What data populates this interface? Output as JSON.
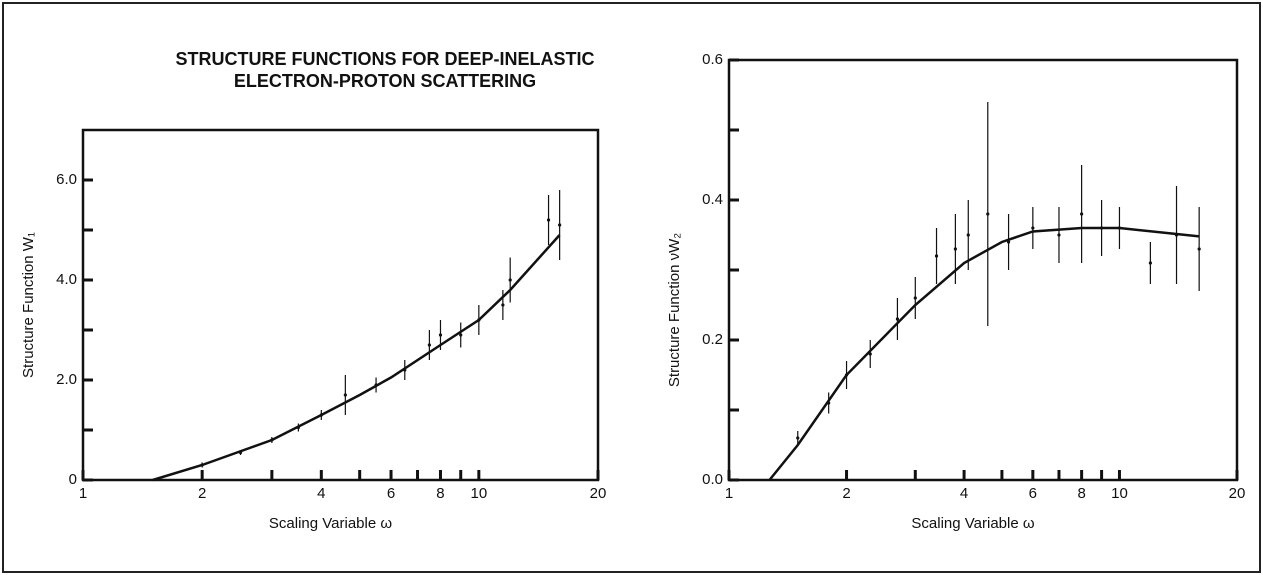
{
  "chart_data": [
    {
      "type": "scatter",
      "title": "STRUCTURE FUNCTIONS FOR DEEP-INELASTIC ELECTRON-PROTON SCATTERING",
      "x_label": "Scaling Variable ω",
      "y_label": "Structure Function W₁",
      "log_x": true,
      "xlim": [
        1,
        20
      ],
      "xticks": [
        1,
        2,
        4,
        6,
        8,
        10,
        20
      ],
      "xminorticks": [
        3,
        5,
        7,
        9
      ],
      "ylim": [
        0,
        7
      ],
      "yticks": [
        0,
        {
          "value": 2,
          "label": "2.0"
        },
        {
          "value": 4,
          "label": "4.0"
        },
        {
          "value": 6,
          "label": "6.0"
        }
      ],
      "yminorticks": [
        1,
        3,
        5
      ],
      "color": "#111111",
      "fit": {
        "x": [
          1.5,
          2,
          3,
          4,
          5,
          6,
          8,
          10,
          12,
          16
        ],
        "values": [
          0,
          0.3,
          0.8,
          1.3,
          1.7,
          2.05,
          2.7,
          3.2,
          3.8,
          4.9
        ]
      },
      "points": {
        "x": [
          2,
          2.5,
          3,
          3.5,
          4,
          4.6,
          5.5,
          6.5,
          7.5,
          8,
          9,
          10,
          11.5,
          12,
          15,
          16
        ],
        "values": [
          0.3,
          0.55,
          0.8,
          1.05,
          1.3,
          1.7,
          1.9,
          2.2,
          2.7,
          2.9,
          2.9,
          3.2,
          3.5,
          4.0,
          5.2,
          5.1
        ],
        "errors": [
          0.05,
          0.05,
          0.06,
          0.08,
          0.1,
          0.4,
          0.15,
          0.2,
          0.3,
          0.3,
          0.25,
          0.3,
          0.3,
          0.45,
          0.5,
          0.7
        ]
      }
    },
    {
      "type": "scatter",
      "x_label": "Scaling Variable ω",
      "y_label": "Structure Function νW₂",
      "log_x": true,
      "xlim": [
        1,
        20
      ],
      "xticks": [
        1,
        2,
        4,
        6,
        8,
        10,
        20
      ],
      "xminorticks": [
        3,
        5,
        7,
        9
      ],
      "ylim": [
        0,
        0.6
      ],
      "yticks": [
        {
          "value": 0,
          "label": "0.0"
        },
        0.2,
        0.4,
        0.6
      ],
      "yminorticks": [
        0.1,
        0.3,
        0.5
      ],
      "color": "#111111",
      "fit": {
        "x": [
          1.27,
          1.5,
          2,
          3,
          4,
          5,
          6,
          8,
          10,
          16
        ],
        "values": [
          0,
          0.05,
          0.15,
          0.25,
          0.31,
          0.34,
          0.355,
          0.36,
          0.36,
          0.348
        ]
      },
      "points": {
        "x": [
          1.5,
          1.8,
          2,
          2.3,
          2.7,
          3,
          3.4,
          3.8,
          4.1,
          4.6,
          5.2,
          6,
          7,
          8,
          9,
          10,
          12,
          14,
          16
        ],
        "values": [
          0.06,
          0.11,
          0.15,
          0.18,
          0.23,
          0.26,
          0.32,
          0.33,
          0.35,
          0.38,
          0.34,
          0.36,
          0.35,
          0.38,
          0.36,
          0.36,
          0.31,
          0.35,
          0.33
        ],
        "errors": [
          0.01,
          0.015,
          0.02,
          0.02,
          0.03,
          0.03,
          0.04,
          0.05,
          0.05,
          0.16,
          0.04,
          0.03,
          0.04,
          0.07,
          0.04,
          0.03,
          0.03,
          0.07,
          0.06
        ]
      }
    }
  ]
}
